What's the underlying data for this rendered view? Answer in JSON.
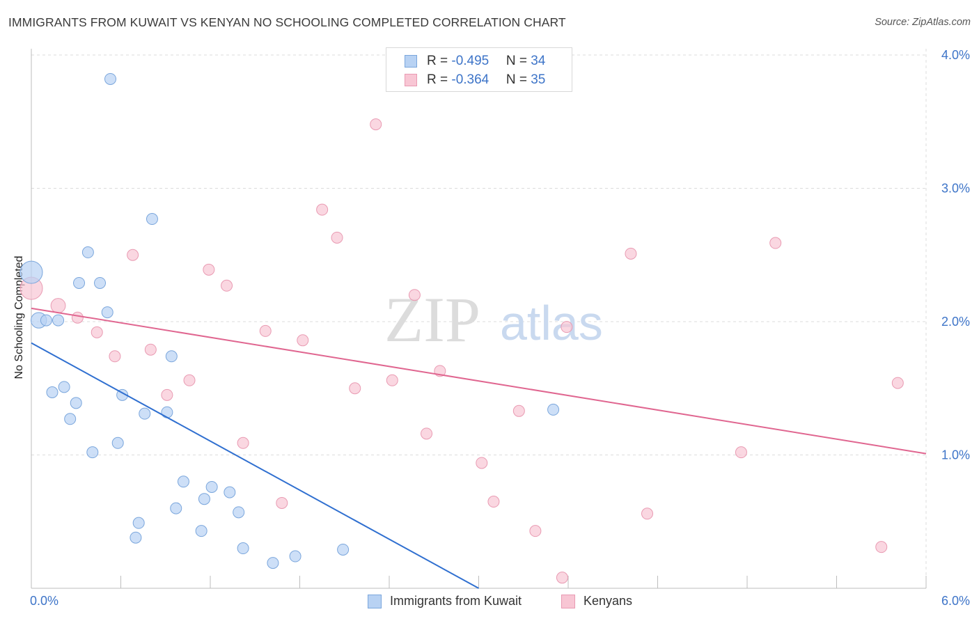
{
  "title": "IMMIGRANTS FROM KUWAIT VS KENYAN NO SCHOOLING COMPLETED CORRELATION CHART",
  "source": "Source: ZipAtlas.com",
  "legend_top": {
    "rows": [
      {
        "r_label": "R = ",
        "r_value": "-0.495",
        "n_label": "N = ",
        "n_value": "34"
      },
      {
        "r_label": "R = ",
        "r_value": "-0.364",
        "n_label": "N = ",
        "n_value": "35"
      }
    ]
  },
  "legend_bottom": {
    "items": [
      "Immigrants from Kuwait",
      "Kenyans"
    ]
  },
  "watermark": {
    "zip": "ZIP",
    "atlas": "atlas"
  },
  "colors": {
    "kuwait_fill": "#b8d2f3",
    "kuwait_stroke": "#7aa6dc",
    "kuwait_line": "#2f6fd0",
    "kenyan_fill": "#f8c6d4",
    "kenyan_stroke": "#e99ab2",
    "kenyan_line": "#e06690",
    "tick_text": "#3d74c8",
    "grid": "#dcdcdc"
  },
  "chart_data": {
    "type": "scatter",
    "title": "IMMIGRANTS FROM KUWAIT VS KENYAN NO SCHOOLING COMPLETED CORRELATION CHART",
    "xlabel": "",
    "ylabel": "No Schooling Completed",
    "xlim": [
      0,
      6
    ],
    "ylim": [
      0,
      4.15
    ],
    "x_tick_labels": [
      "0.0%",
      "6.0%"
    ],
    "y_ticks": [
      1.0,
      2.0,
      3.0,
      4.0
    ],
    "y_tick_labels": [
      "1.0%",
      "2.0%",
      "3.0%",
      "4.0%"
    ],
    "grid": true,
    "legend_position": "top-center",
    "series": [
      {
        "name": "Immigrants from Kuwait",
        "r": -0.495,
        "n": 34,
        "trend": {
          "x": [
            0.0,
            3.0
          ],
          "y": [
            1.84,
            0.0
          ]
        },
        "points": [
          {
            "x": 0.53,
            "y": 3.82,
            "s": 1
          },
          {
            "x": 0.81,
            "y": 2.77,
            "s": 1
          },
          {
            "x": 0.38,
            "y": 2.52,
            "s": 1
          },
          {
            "x": 0.32,
            "y": 2.29,
            "s": 1
          },
          {
            "x": 0.46,
            "y": 2.29,
            "s": 1
          },
          {
            "x": 0.51,
            "y": 2.07,
            "s": 1
          },
          {
            "x": 0.0,
            "y": 2.37,
            "s": 2
          },
          {
            "x": 0.05,
            "y": 2.01,
            "s": 1.4
          },
          {
            "x": 0.1,
            "y": 2.01,
            "s": 1
          },
          {
            "x": 0.18,
            "y": 2.01,
            "s": 1
          },
          {
            "x": 0.94,
            "y": 1.74,
            "s": 1
          },
          {
            "x": 0.22,
            "y": 1.51,
            "s": 1
          },
          {
            "x": 0.14,
            "y": 1.47,
            "s": 1
          },
          {
            "x": 0.61,
            "y": 1.45,
            "s": 1
          },
          {
            "x": 0.3,
            "y": 1.39,
            "s": 1
          },
          {
            "x": 0.76,
            "y": 1.31,
            "s": 1
          },
          {
            "x": 0.91,
            "y": 1.32,
            "s": 1
          },
          {
            "x": 0.26,
            "y": 1.27,
            "s": 1
          },
          {
            "x": 3.5,
            "y": 1.34,
            "s": 1
          },
          {
            "x": 0.58,
            "y": 1.09,
            "s": 1
          },
          {
            "x": 0.41,
            "y": 1.02,
            "s": 1
          },
          {
            "x": 1.02,
            "y": 0.8,
            "s": 1
          },
          {
            "x": 1.21,
            "y": 0.76,
            "s": 1
          },
          {
            "x": 1.33,
            "y": 0.72,
            "s": 1
          },
          {
            "x": 1.16,
            "y": 0.67,
            "s": 1
          },
          {
            "x": 0.97,
            "y": 0.6,
            "s": 1
          },
          {
            "x": 1.39,
            "y": 0.57,
            "s": 1
          },
          {
            "x": 0.72,
            "y": 0.49,
            "s": 1
          },
          {
            "x": 1.14,
            "y": 0.43,
            "s": 1
          },
          {
            "x": 0.7,
            "y": 0.38,
            "s": 1
          },
          {
            "x": 1.42,
            "y": 0.3,
            "s": 1
          },
          {
            "x": 2.09,
            "y": 0.29,
            "s": 1
          },
          {
            "x": 1.77,
            "y": 0.24,
            "s": 1
          },
          {
            "x": 1.62,
            "y": 0.19,
            "s": 1
          }
        ]
      },
      {
        "name": "Kenyans",
        "r": -0.364,
        "n": 35,
        "trend": {
          "x": [
            0.0,
            6.0
          ],
          "y": [
            2.1,
            1.01
          ]
        },
        "points": [
          {
            "x": 2.31,
            "y": 3.48,
            "s": 1
          },
          {
            "x": 1.95,
            "y": 2.84,
            "s": 1
          },
          {
            "x": 2.05,
            "y": 2.63,
            "s": 1
          },
          {
            "x": 4.99,
            "y": 2.59,
            "s": 1
          },
          {
            "x": 0.68,
            "y": 2.5,
            "s": 1
          },
          {
            "x": 4.02,
            "y": 2.51,
            "s": 1
          },
          {
            "x": 1.19,
            "y": 2.39,
            "s": 1
          },
          {
            "x": 1.31,
            "y": 2.27,
            "s": 1
          },
          {
            "x": 0.0,
            "y": 2.25,
            "s": 2
          },
          {
            "x": 2.57,
            "y": 2.2,
            "s": 1
          },
          {
            "x": 0.18,
            "y": 2.12,
            "s": 1.3
          },
          {
            "x": 0.31,
            "y": 2.03,
            "s": 1
          },
          {
            "x": 3.59,
            "y": 1.96,
            "s": 1
          },
          {
            "x": 0.44,
            "y": 1.92,
            "s": 1
          },
          {
            "x": 1.57,
            "y": 1.93,
            "s": 1
          },
          {
            "x": 1.82,
            "y": 1.86,
            "s": 1
          },
          {
            "x": 0.8,
            "y": 1.79,
            "s": 1
          },
          {
            "x": 0.56,
            "y": 1.74,
            "s": 1
          },
          {
            "x": 2.74,
            "y": 1.63,
            "s": 1
          },
          {
            "x": 1.06,
            "y": 1.56,
            "s": 1
          },
          {
            "x": 2.42,
            "y": 1.56,
            "s": 1
          },
          {
            "x": 5.81,
            "y": 1.54,
            "s": 1
          },
          {
            "x": 2.17,
            "y": 1.5,
            "s": 1
          },
          {
            "x": 0.91,
            "y": 1.45,
            "s": 1
          },
          {
            "x": 3.27,
            "y": 1.33,
            "s": 1
          },
          {
            "x": 2.65,
            "y": 1.16,
            "s": 1
          },
          {
            "x": 1.42,
            "y": 1.09,
            "s": 1
          },
          {
            "x": 4.76,
            "y": 1.02,
            "s": 1
          },
          {
            "x": 3.02,
            "y": 0.94,
            "s": 1
          },
          {
            "x": 1.68,
            "y": 0.64,
            "s": 1
          },
          {
            "x": 3.1,
            "y": 0.65,
            "s": 1
          },
          {
            "x": 4.13,
            "y": 0.56,
            "s": 1
          },
          {
            "x": 3.38,
            "y": 0.43,
            "s": 1
          },
          {
            "x": 5.7,
            "y": 0.31,
            "s": 1
          },
          {
            "x": 3.56,
            "y": 0.08,
            "s": 1
          }
        ]
      }
    ]
  }
}
